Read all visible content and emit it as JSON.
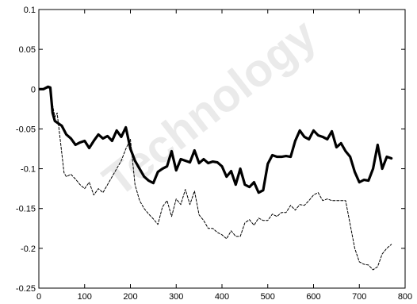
{
  "watermark_text": "Technology",
  "chart_data": {
    "type": "line",
    "title": "",
    "xlabel": "",
    "ylabel": "",
    "xlim": [
      0,
      800
    ],
    "ylim": [
      -0.25,
      0.1
    ],
    "grid": false,
    "legend": "none",
    "x_ticks": [
      0,
      100,
      200,
      300,
      400,
      500,
      600,
      700,
      800
    ],
    "x_tick_labels": [
      "0",
      "100",
      "200",
      "300",
      "400",
      "500",
      "600",
      "700",
      "800"
    ],
    "y_ticks": [
      -0.25,
      -0.2,
      -0.15,
      -0.1,
      -0.05,
      0,
      0.05,
      0.1
    ],
    "y_tick_labels": [
      "-0.25",
      "-0.2",
      "-0.15",
      "-0.1",
      "-0.05",
      "0",
      "0.05",
      "0.1"
    ],
    "series": [
      {
        "style": "solid-thick",
        "color": "#000000",
        "x": [
          0,
          10,
          20,
          25,
          30,
          35,
          40,
          50,
          60,
          70,
          80,
          90,
          100,
          110,
          120,
          130,
          140,
          150,
          160,
          170,
          180,
          190,
          200,
          210,
          220,
          230,
          240,
          250,
          260,
          270,
          280,
          290,
          300,
          310,
          320,
          330,
          340,
          350,
          360,
          370,
          380,
          390,
          400,
          410,
          420,
          430,
          440,
          450,
          460,
          470,
          480,
          490,
          500,
          510,
          520,
          530,
          540,
          550,
          560,
          570,
          580,
          590,
          600,
          610,
          620,
          630,
          640,
          650,
          660,
          670,
          680,
          690,
          700,
          710,
          720,
          730,
          740,
          750,
          760,
          770
        ],
        "y": [
          0,
          0,
          0.003,
          0.002,
          -0.03,
          -0.04,
          -0.042,
          -0.046,
          -0.057,
          -0.062,
          -0.07,
          -0.067,
          -0.065,
          -0.074,
          -0.065,
          -0.057,
          -0.062,
          -0.059,
          -0.065,
          -0.052,
          -0.06,
          -0.048,
          -0.075,
          -0.09,
          -0.1,
          -0.11,
          -0.115,
          -0.118,
          -0.104,
          -0.1,
          -0.097,
          -0.078,
          -0.102,
          -0.088,
          -0.09,
          -0.092,
          -0.077,
          -0.093,
          -0.088,
          -0.093,
          -0.091,
          -0.092,
          -0.097,
          -0.11,
          -0.103,
          -0.12,
          -0.1,
          -0.12,
          -0.123,
          -0.117,
          -0.13,
          -0.127,
          -0.094,
          -0.083,
          -0.085,
          -0.085,
          -0.084,
          -0.085,
          -0.065,
          -0.052,
          -0.06,
          -0.063,
          -0.052,
          -0.058,
          -0.06,
          -0.063,
          -0.053,
          -0.073,
          -0.068,
          -0.078,
          -0.085,
          -0.104,
          -0.117,
          -0.114,
          -0.115,
          -0.1,
          -0.07,
          -0.1,
          -0.085,
          -0.087
        ]
      },
      {
        "style": "dashed-thin",
        "color": "#000000",
        "x": [
          0,
          10,
          20,
          25,
          30,
          35,
          40,
          45,
          50,
          55,
          60,
          70,
          80,
          90,
          100,
          110,
          120,
          130,
          140,
          150,
          160,
          170,
          180,
          190,
          200,
          210,
          220,
          230,
          240,
          250,
          260,
          270,
          280,
          290,
          300,
          310,
          320,
          330,
          340,
          350,
          360,
          370,
          380,
          390,
          400,
          410,
          420,
          430,
          440,
          450,
          460,
          470,
          480,
          490,
          500,
          510,
          520,
          530,
          540,
          550,
          560,
          570,
          580,
          590,
          600,
          610,
          620,
          630,
          640,
          650,
          660,
          670,
          680,
          690,
          700,
          710,
          720,
          730,
          740,
          750,
          760,
          770
        ],
        "y": [
          0,
          0,
          0.002,
          0,
          -0.02,
          -0.035,
          -0.03,
          -0.055,
          -0.08,
          -0.105,
          -0.11,
          -0.107,
          -0.113,
          -0.12,
          -0.125,
          -0.117,
          -0.133,
          -0.125,
          -0.13,
          -0.12,
          -0.11,
          -0.1,
          -0.09,
          -0.075,
          -0.063,
          -0.12,
          -0.14,
          -0.15,
          -0.157,
          -0.163,
          -0.17,
          -0.148,
          -0.14,
          -0.16,
          -0.138,
          -0.145,
          -0.126,
          -0.145,
          -0.128,
          -0.158,
          -0.165,
          -0.175,
          -0.175,
          -0.18,
          -0.183,
          -0.188,
          -0.178,
          -0.185,
          -0.185,
          -0.168,
          -0.164,
          -0.171,
          -0.162,
          -0.165,
          -0.165,
          -0.157,
          -0.16,
          -0.155,
          -0.155,
          -0.146,
          -0.152,
          -0.145,
          -0.146,
          -0.14,
          -0.133,
          -0.13,
          -0.14,
          -0.138,
          -0.14,
          -0.14,
          -0.14,
          -0.14,
          -0.17,
          -0.2,
          -0.217,
          -0.22,
          -0.221,
          -0.227,
          -0.223,
          -0.207,
          -0.2,
          -0.195
        ]
      }
    ]
  }
}
